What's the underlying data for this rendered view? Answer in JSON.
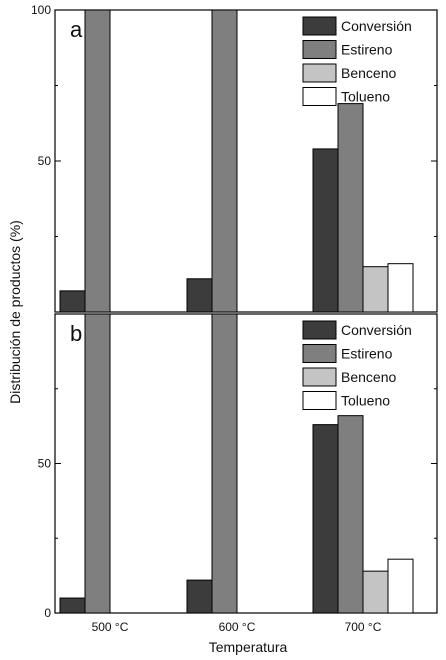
{
  "chart_data": {
    "type": "bar",
    "categories": [
      "500 °C",
      "600 °C",
      "700 °C"
    ],
    "xlabel": "Temperatura",
    "ylabel": "Distribución de productos (%)",
    "legend_position": "top-right",
    "colors": {
      "Conversión": "#3c3c3c",
      "Estireno": "#7f7f7f",
      "Benceno": "#c4c4c4",
      "Tolueno": "#ffffff"
    },
    "panels": [
      {
        "label": "a",
        "ylim": [
          0,
          100
        ],
        "yticks": [
          50,
          100
        ],
        "series": [
          {
            "name": "Conversión",
            "values": [
              7,
              11,
              54
            ]
          },
          {
            "name": "Estireno",
            "values": [
              100,
              100,
              69
            ]
          },
          {
            "name": "Benceno",
            "values": [
              null,
              null,
              15
            ]
          },
          {
            "name": "Tolueno",
            "values": [
              null,
              null,
              16
            ]
          }
        ]
      },
      {
        "label": "b",
        "ylim": [
          0,
          100
        ],
        "yticks": [
          0,
          50
        ],
        "series": [
          {
            "name": "Conversión",
            "values": [
              5,
              11,
              63
            ]
          },
          {
            "name": "Estireno",
            "values": [
              100,
              100,
              66
            ]
          },
          {
            "name": "Benceno",
            "values": [
              null,
              null,
              14
            ]
          },
          {
            "name": "Tolueno",
            "values": [
              null,
              null,
              18
            ]
          }
        ]
      }
    ]
  }
}
